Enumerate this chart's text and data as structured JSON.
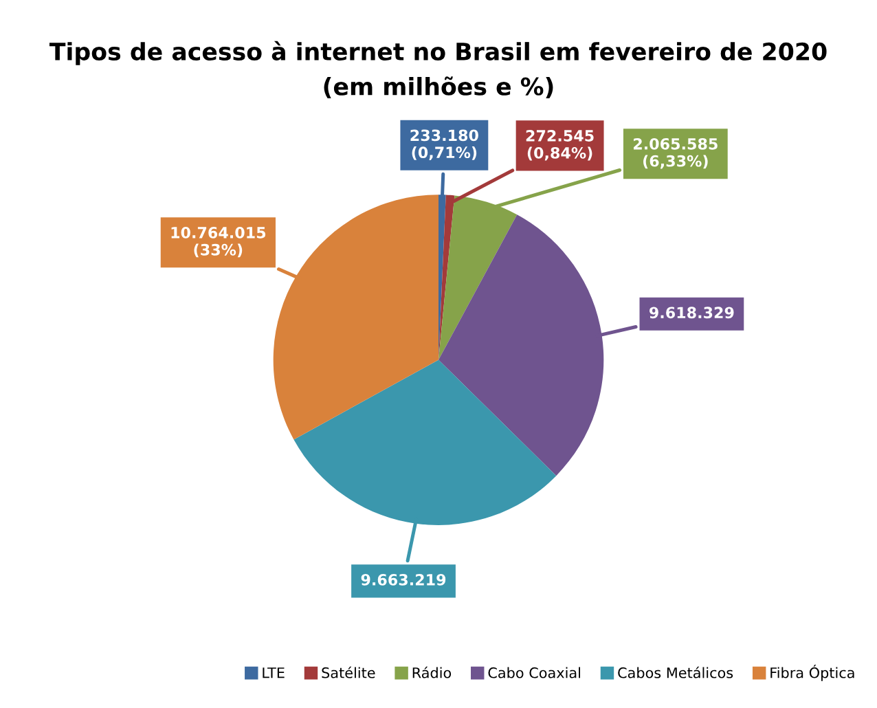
{
  "chart_data": {
    "type": "pie",
    "title": "Tipos de acesso à internet no Brasil em fevereiro de 2020",
    "subtitle": "(em milhões e %)",
    "categories": [
      "LTE",
      "Satélite",
      "Rádio",
      "Cabo Coaxial",
      "Cabos Metálicos",
      "Fibra Óptica"
    ],
    "values": [
      233180,
      272545,
      2065585,
      9618329,
      9663219,
      10764015
    ],
    "value_labels": [
      "233.180\n(0,71%)",
      "272.545\n(0,84%)",
      "2.065.585\n(6,33%)",
      "9.618.329",
      "9.663.219",
      "10.764.015\n(33%)"
    ],
    "colors": [
      "#3d6aa0",
      "#a33a3a",
      "#86a34a",
      "#6f548f",
      "#3b97ad",
      "#d9823b"
    ],
    "legend": "bottom right"
  }
}
